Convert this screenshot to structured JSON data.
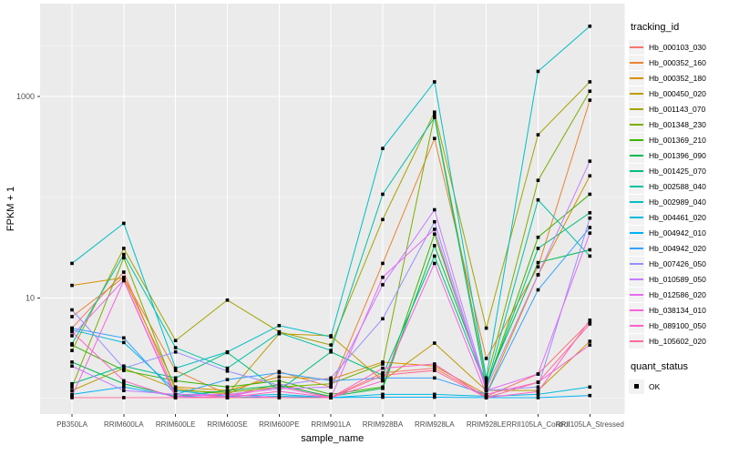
{
  "style": {
    "panel_bg": "#EBEBEB",
    "gridline_major": "#FFFFFF",
    "gridline_minor": "#F7F7F7",
    "tick_mark_color": "#333333",
    "tick_label_color": "#4D4D4D",
    "axis_title_color": "#000000",
    "legend_key_bg": "#F2F2F2",
    "point_color": "#000000"
  },
  "legend": {
    "tracking_title": "tracking_id",
    "quant_title": "quant_status",
    "quant_items": [
      "OK"
    ]
  },
  "chart_data": {
    "type": "line",
    "title": "",
    "xlabel": "sample_name",
    "ylabel": "FPKM + 1",
    "y_scale": "log10",
    "ylim": [
      0.7,
      8400
    ],
    "grid": true,
    "legend_position": "right",
    "legend_title": "tracking_id",
    "point_shape": "square",
    "quant_status_of_all_points": "OK",
    "y_axis_ticks": [
      {
        "label": "1000",
        "value": 1000
      },
      {
        "label": "10",
        "value": 10
      }
    ],
    "y_minor_gridlines": [
      1,
      100,
      3162
    ],
    "x_categories": [
      "PB350LA",
      "RRIM600LA",
      "RRIM600LE",
      "RRIM600SE",
      "RRIM600PE",
      "RRIM901LA",
      "RRIM928BA",
      "RRIM928LA",
      "RRIM928LE",
      "RRII105LA_Control",
      "RRII105LA_Stressed"
    ],
    "series": [
      {
        "name": "Hb_000103_030",
        "color": "#F8766D",
        "values": [
          5.0,
          18,
          1.1,
          1.05,
          1.4,
          1.02,
          1.8,
          2.0,
          1.05,
          1.75,
          5.8
        ]
      },
      {
        "name": "Hb_000352_160",
        "color": "#EA8331",
        "values": [
          6.5,
          16,
          1.9,
          1.1,
          1.85,
          1.3,
          22,
          383,
          2.5,
          20.3,
          920
        ]
      },
      {
        "name": "Hb_000352_180",
        "color": "#D89000",
        "values": [
          13.3,
          15.9,
          1.3,
          1.2,
          1.64,
          1.55,
          2.3,
          2.1,
          1.1,
          16.9,
          163
        ]
      },
      {
        "name": "Hb_000450_020",
        "color": "#C09B00",
        "values": [
          1.2,
          2.0,
          1.25,
          1.1,
          4.4,
          4.2,
          1.5,
          3.55,
          1.2,
          1.2,
          3.7
        ]
      },
      {
        "name": "Hb_001143_070",
        "color": "#A3A500",
        "values": [
          3.0,
          31,
          3.76,
          9.5,
          4.6,
          3.4,
          60,
          700,
          5.0,
          417,
          1400
        ]
      },
      {
        "name": "Hb_001348_230",
        "color": "#7CAE00",
        "values": [
          1.3,
          25,
          1.2,
          1.15,
          1.3,
          1.4,
          2.2,
          650,
          1.5,
          147,
          1130
        ]
      },
      {
        "name": "Hb_001369_210",
        "color": "#39B600",
        "values": [
          3.4,
          1.9,
          1.5,
          1.3,
          1.5,
          1.1,
          1.3,
          43,
          1.3,
          40,
          107
        ]
      },
      {
        "name": "Hb_001396_090",
        "color": "#00BB4E",
        "values": [
          2.3,
          1.4,
          1.05,
          1.2,
          1.35,
          1.05,
          1.26,
          33,
          1.4,
          22.4,
          30
        ]
      },
      {
        "name": "Hb_001425_070",
        "color": "#00BF7D",
        "values": [
          1.4,
          2.1,
          1.6,
          2.86,
          1.2,
          2.9,
          1.7,
          26,
          1.3,
          31,
          70
        ]
      },
      {
        "name": "Hb_002588_040",
        "color": "#00C1A3",
        "values": [
          3.5,
          27,
          3.2,
          2.0,
          4.5,
          3.0,
          107,
          620,
          1.3,
          94,
          26
        ]
      },
      {
        "name": "Hb_002989_040",
        "color": "#00BFC4",
        "values": [
          22,
          55,
          2.0,
          2.9,
          5.3,
          4.1,
          305,
          1400,
          1.6,
          1780,
          5000
        ]
      },
      {
        "name": "Hb_004461_020",
        "color": "#00BAE0",
        "values": [
          4.8,
          3.6,
          1.2,
          1.05,
          1.1,
          1.02,
          1.1,
          1.1,
          1.05,
          1.1,
          1.3
        ]
      },
      {
        "name": "Hb_004942_010",
        "color": "#00B0F6",
        "values": [
          1.1,
          1.3,
          1.05,
          1.02,
          1.05,
          1.02,
          1.03,
          1.03,
          1.02,
          1.02,
          1.07
        ]
      },
      {
        "name": "Hb_004942_020",
        "color": "#35A2FF",
        "values": [
          5.0,
          4.0,
          1.1,
          1.54,
          1.8,
          1.5,
          1.6,
          1.6,
          1.1,
          12,
          50
        ]
      },
      {
        "name": "Hb_007426_050",
        "color": "#9590FF",
        "values": [
          7.6,
          2.0,
          2.9,
          1.87,
          1.35,
          1.6,
          6.2,
          57,
          1.2,
          1.3,
          62
        ]
      },
      {
        "name": "Hb_010589_050",
        "color": "#C77CFF",
        "values": [
          2.1,
          1.2,
          1.1,
          1.1,
          1.25,
          1.3,
          13.5,
          75,
          1.25,
          17,
          228
        ]
      },
      {
        "name": "Hb_012586_020",
        "color": "#E76BF3",
        "values": [
          4.2,
          15,
          1.05,
          1.1,
          1.02,
          1.02,
          16,
          48,
          1.2,
          1.75,
          44
        ]
      },
      {
        "name": "Hb_038134_010",
        "color": "#FA62DB",
        "values": [
          1.05,
          14.8,
          1.02,
          1.05,
          1.3,
          1.02,
          1.5,
          22,
          1.1,
          1.45,
          3.4
        ]
      },
      {
        "name": "Hb_089100_050",
        "color": "#FF61CC",
        "values": [
          4.6,
          1.5,
          1.02,
          1.02,
          1.18,
          1.02,
          2.0,
          2.2,
          1.02,
          1.17,
          6.0
        ]
      },
      {
        "name": "Hb_105602_020",
        "color": "#FF6A98",
        "values": [
          1.02,
          1.02,
          1.02,
          1.02,
          1.02,
          1.02,
          1.7,
          1.9,
          1.02,
          1.45,
          5.5
        ]
      }
    ]
  }
}
